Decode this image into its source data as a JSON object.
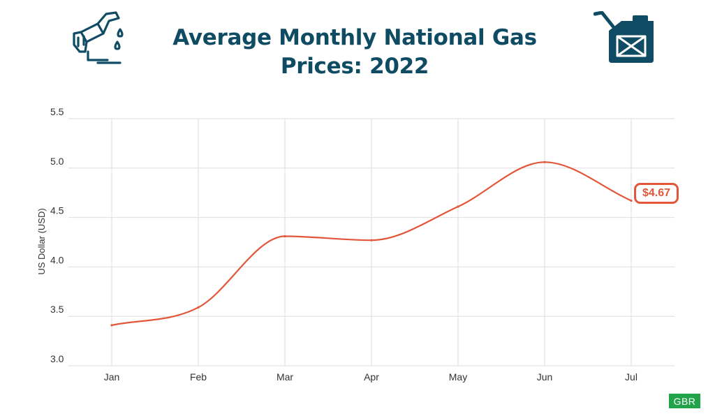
{
  "title": "Average Monthly National Gas Prices: 2022",
  "icons": {
    "left": "gas-pump-icon",
    "right": "fuel-can-icon"
  },
  "badge_label": "$4.67",
  "logo_text": "GBR",
  "colors": {
    "title": "#0f4c64",
    "line": "#e2563a",
    "grid": "#dddddd",
    "logo": "#22a34a"
  },
  "chart_data": {
    "type": "line",
    "title": "Average Monthly National Gas Prices: 2022",
    "xlabel": "",
    "ylabel": "US Dollar (USD)",
    "categories": [
      "Jan",
      "Feb",
      "Mar",
      "Apr",
      "May",
      "Jun",
      "Jul"
    ],
    "series": [
      {
        "values": [
          3.41,
          3.59,
          4.31,
          4.27,
          4.61,
          5.06,
          4.67
        ]
      }
    ],
    "ylim": [
      3.0,
      5.5
    ],
    "yticks": [
      "3.0",
      "3.5",
      "4.0",
      "4.5",
      "5.0",
      "5.5"
    ],
    "grid": true,
    "annotation": {
      "category": "Jul",
      "label": "$4.67"
    }
  }
}
